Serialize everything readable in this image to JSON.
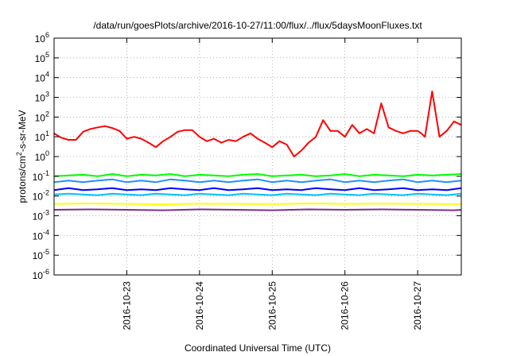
{
  "chart_data": {
    "type": "line",
    "title": "/data/run/goesPlots/archive/2016-10-27/11:00/flux/../flux/5daysMoonFluxes.txt",
    "xlabel": "Coordinated Universal Time (UTC)",
    "ylabel": {
      "prefix": "protons/cm",
      "superscript": "2",
      "suffix": "-s-sr-MeV"
    },
    "yscale": "log",
    "ylim_exponents": [
      -6,
      6
    ],
    "xlim_days": [
      0,
      5.6
    ],
    "x_ticks": [
      {
        "day": 1,
        "label": "2016-10-23"
      },
      {
        "day": 2,
        "label": "2016-10-24"
      },
      {
        "day": 3,
        "label": "2016-10-25"
      },
      {
        "day": 4,
        "label": "2016-10-26"
      },
      {
        "day": 5,
        "label": "2016-10-27"
      }
    ],
    "y_ticks": [
      {
        "exp": -6,
        "base": "10",
        "sup": "-6"
      },
      {
        "exp": -5,
        "base": "10",
        "sup": "-5"
      },
      {
        "exp": -4,
        "base": "10",
        "sup": "-4"
      },
      {
        "exp": -3,
        "base": "10",
        "sup": "-3"
      },
      {
        "exp": -2,
        "base": "10",
        "sup": "-2"
      },
      {
        "exp": -1,
        "base": "10",
        "sup": "-1"
      },
      {
        "exp": 0,
        "base": "10",
        "sup": "0"
      },
      {
        "exp": 1,
        "base": "10",
        "sup": "1"
      },
      {
        "exp": 2,
        "base": "10",
        "sup": "2"
      },
      {
        "exp": 3,
        "base": "10",
        "sup": "3"
      },
      {
        "exp": 4,
        "base": "10",
        "sup": "4"
      },
      {
        "exp": 5,
        "base": "10",
        "sup": "5"
      },
      {
        "exp": 6,
        "base": "10",
        "sup": "6"
      }
    ],
    "grid": true,
    "series": [
      {
        "color": "#ff0000",
        "x": [
          0,
          0.1,
          0.2,
          0.3,
          0.4,
          0.5,
          0.6,
          0.7,
          0.8,
          0.9,
          1,
          1.1,
          1.2,
          1.3,
          1.4,
          1.5,
          1.6,
          1.7,
          1.8,
          1.9,
          2,
          2.1,
          2.2,
          2.3,
          2.4,
          2.5,
          2.6,
          2.7,
          2.8,
          2.9,
          3,
          3.1,
          3.2,
          3.3,
          3.4,
          3.5,
          3.6,
          3.7,
          3.8,
          3.9,
          4,
          4.1,
          4.2,
          4.3,
          4.4,
          4.5,
          4.6,
          4.7,
          4.8,
          4.9,
          5,
          5.05,
          5.1,
          5.2,
          5.3,
          5.4,
          5.5,
          5.6
        ],
        "y": [
          15,
          9,
          7,
          7,
          18,
          25,
          30,
          35,
          28,
          20,
          8,
          10,
          8,
          5,
          3,
          6,
          10,
          18,
          22,
          22,
          10,
          6,
          8,
          5,
          7,
          6,
          10,
          15,
          8,
          5,
          3,
          6,
          4,
          1,
          2,
          5,
          10,
          70,
          20,
          20,
          10,
          40,
          15,
          25,
          15,
          500,
          30,
          20,
          15,
          20,
          20,
          15,
          10,
          2000,
          10,
          20,
          60,
          40
        ]
      },
      {
        "color": "#00ff00",
        "x": [
          0,
          0.2,
          0.4,
          0.6,
          0.8,
          1,
          1.2,
          1.4,
          1.6,
          1.8,
          2,
          2.2,
          2.4,
          2.6,
          2.8,
          3,
          3.2,
          3.4,
          3.6,
          3.8,
          4,
          4.2,
          4.4,
          4.6,
          4.8,
          5,
          5.2,
          5.4,
          5.6
        ],
        "y": [
          0.1,
          0.11,
          0.12,
          0.1,
          0.13,
          0.1,
          0.12,
          0.11,
          0.13,
          0.1,
          0.12,
          0.11,
          0.1,
          0.12,
          0.13,
          0.1,
          0.11,
          0.12,
          0.1,
          0.11,
          0.13,
          0.1,
          0.12,
          0.11,
          0.1,
          0.12,
          0.11,
          0.12,
          0.13
        ]
      },
      {
        "color": "#1e90ff",
        "x": [
          0,
          0.2,
          0.4,
          0.6,
          0.8,
          1,
          1.2,
          1.4,
          1.6,
          1.8,
          2,
          2.2,
          2.4,
          2.6,
          2.8,
          3,
          3.2,
          3.4,
          3.6,
          3.8,
          4,
          4.2,
          4.4,
          4.6,
          4.8,
          5,
          5.2,
          5.4,
          5.6
        ],
        "y": [
          0.05,
          0.06,
          0.05,
          0.06,
          0.07,
          0.05,
          0.06,
          0.05,
          0.07,
          0.06,
          0.05,
          0.06,
          0.05,
          0.06,
          0.07,
          0.05,
          0.06,
          0.05,
          0.06,
          0.07,
          0.05,
          0.06,
          0.05,
          0.06,
          0.07,
          0.05,
          0.06,
          0.05,
          0.06
        ]
      },
      {
        "color": "#0000ff",
        "x": [
          0,
          0.2,
          0.4,
          0.6,
          0.8,
          1,
          1.2,
          1.4,
          1.6,
          1.8,
          2,
          2.2,
          2.4,
          2.6,
          2.8,
          3,
          3.2,
          3.4,
          3.6,
          3.8,
          4,
          4.2,
          4.4,
          4.6,
          4.8,
          5,
          5.2,
          5.4,
          5.6
        ],
        "y": [
          0.02,
          0.025,
          0.02,
          0.022,
          0.025,
          0.02,
          0.022,
          0.02,
          0.025,
          0.022,
          0.02,
          0.025,
          0.02,
          0.022,
          0.025,
          0.02,
          0.022,
          0.02,
          0.025,
          0.022,
          0.02,
          0.025,
          0.02,
          0.022,
          0.025,
          0.02,
          0.022,
          0.02,
          0.025
        ]
      },
      {
        "color": "#00bfff",
        "x": [
          0,
          0.2,
          0.4,
          0.6,
          0.8,
          1,
          1.2,
          1.4,
          1.6,
          1.8,
          2,
          2.2,
          2.4,
          2.6,
          2.8,
          3,
          3.2,
          3.4,
          3.6,
          3.8,
          4,
          4.2,
          4.4,
          4.6,
          4.8,
          5,
          5.2,
          5.4,
          5.6
        ],
        "y": [
          0.012,
          0.013,
          0.012,
          0.011,
          0.013,
          0.012,
          0.011,
          0.013,
          0.012,
          0.011,
          0.013,
          0.012,
          0.011,
          0.013,
          0.012,
          0.011,
          0.013,
          0.012,
          0.011,
          0.013,
          0.012,
          0.011,
          0.013,
          0.012,
          0.011,
          0.013,
          0.012,
          0.011,
          0.013
        ]
      },
      {
        "color": "#ffff00",
        "x": [
          0,
          0.5,
          1,
          1.5,
          2,
          2.5,
          3,
          3.5,
          4,
          4.5,
          5,
          5.5,
          5.6
        ],
        "y": [
          0.004,
          0.0042,
          0.004,
          0.0038,
          0.0041,
          0.004,
          0.0039,
          0.0042,
          0.004,
          0.0041,
          0.004,
          0.0039,
          0.004
        ]
      },
      {
        "color": "#7b2d8e",
        "x": [
          0,
          0.5,
          1,
          1.5,
          2,
          2.5,
          3,
          3.5,
          4,
          4.5,
          5,
          5.5,
          5.6
        ],
        "y": [
          0.002,
          0.0021,
          0.002,
          0.0019,
          0.0021,
          0.002,
          0.0019,
          0.0021,
          0.002,
          0.0021,
          0.002,
          0.0019,
          0.002
        ]
      }
    ]
  }
}
